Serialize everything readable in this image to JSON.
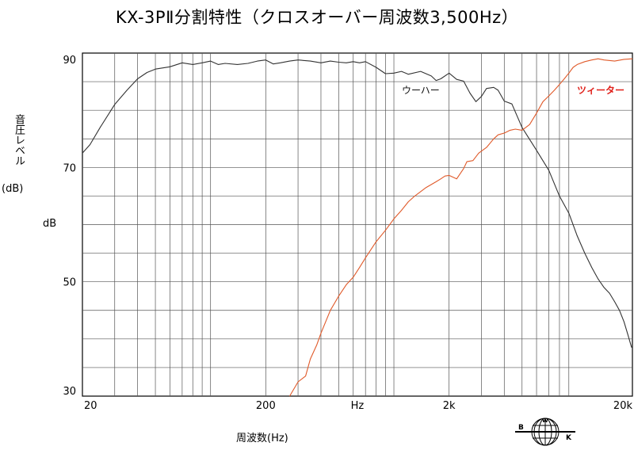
{
  "chart_data": {
    "type": "line",
    "title": "KX-3PⅡ分割特性（クロスオーバー周波数3,500Hz）",
    "ylabel": "音圧レベル",
    "ylabel_unit": "(dB)",
    "ylabel_axis": "dB",
    "xlabel": "周波数(Hz)",
    "x_scale": "log",
    "xlim": [
      20,
      20000
    ],
    "ylim": [
      30,
      90
    ],
    "x_tick_labels": [
      {
        "value": 20,
        "label": "20"
      },
      {
        "value": 200,
        "label": "200"
      },
      {
        "value": 632,
        "label": "Hz"
      },
      {
        "value": 2000,
        "label": "2k"
      },
      {
        "value": 20000,
        "label": "20k"
      }
    ],
    "y_tick_labels": [
      {
        "value": 90,
        "label": "90"
      },
      {
        "value": 70,
        "label": "70"
      },
      {
        "value": 50,
        "label": "50"
      },
      {
        "value": 30,
        "label": "30"
      }
    ],
    "grid": true,
    "series": [
      {
        "name": "ウーハー",
        "color": "#333333",
        "points": [
          [
            20,
            72.5
          ],
          [
            22,
            74
          ],
          [
            25,
            77
          ],
          [
            30,
            81
          ],
          [
            35,
            83.5
          ],
          [
            40,
            85.5
          ],
          [
            45,
            86.6
          ],
          [
            50,
            87.2
          ],
          [
            60,
            87.6
          ],
          [
            70,
            88.3
          ],
          [
            80,
            88
          ],
          [
            90,
            88.3
          ],
          [
            100,
            88.6
          ],
          [
            110,
            88
          ],
          [
            120,
            88.2
          ],
          [
            140,
            88
          ],
          [
            160,
            88.2
          ],
          [
            180,
            88.6
          ],
          [
            200,
            88.8
          ],
          [
            220,
            88.1
          ],
          [
            240,
            88.3
          ],
          [
            270,
            88.6
          ],
          [
            300,
            88.8
          ],
          [
            350,
            88.6
          ],
          [
            400,
            88.3
          ],
          [
            450,
            88.6
          ],
          [
            500,
            88.4
          ],
          [
            550,
            88.3
          ],
          [
            600,
            88.5
          ],
          [
            650,
            88.3
          ],
          [
            700,
            88.5
          ],
          [
            800,
            87.5
          ],
          [
            900,
            86.4
          ],
          [
            1000,
            86.5
          ],
          [
            1100,
            86.8
          ],
          [
            1200,
            86.3
          ],
          [
            1400,
            86.8
          ],
          [
            1600,
            86
          ],
          [
            1700,
            85.2
          ],
          [
            1800,
            85.5
          ],
          [
            2000,
            86.5
          ],
          [
            2200,
            85.4
          ],
          [
            2400,
            85.1
          ],
          [
            2600,
            83
          ],
          [
            2800,
            81.5
          ],
          [
            3000,
            82.4
          ],
          [
            3200,
            83.8
          ],
          [
            3500,
            84
          ],
          [
            3700,
            83.5
          ],
          [
            4000,
            81.6
          ],
          [
            4400,
            81.1
          ],
          [
            5000,
            77
          ],
          [
            6000,
            73
          ],
          [
            7000,
            69.5
          ],
          [
            8000,
            65
          ],
          [
            9000,
            62
          ],
          [
            10000,
            58
          ],
          [
            11000,
            55
          ],
          [
            12000,
            52.5
          ],
          [
            13000,
            50.5
          ],
          [
            14000,
            49
          ],
          [
            15000,
            48
          ],
          [
            16000,
            46.5
          ],
          [
            17000,
            45
          ],
          [
            18000,
            43
          ],
          [
            19000,
            40.5
          ],
          [
            19800,
            38.5
          ]
        ]
      },
      {
        "name": "ツィーター",
        "color": "#e05a2a",
        "points": [
          [
            270,
            30
          ],
          [
            300,
            32.5
          ],
          [
            330,
            33.5
          ],
          [
            350,
            36.5
          ],
          [
            380,
            39
          ],
          [
            400,
            41
          ],
          [
            450,
            45
          ],
          [
            500,
            47.5
          ],
          [
            550,
            49.5
          ],
          [
            600,
            50.8
          ],
          [
            650,
            52.5
          ],
          [
            700,
            54.2
          ],
          [
            800,
            57
          ],
          [
            900,
            59
          ],
          [
            1000,
            61
          ],
          [
            1100,
            62.5
          ],
          [
            1200,
            64
          ],
          [
            1300,
            65
          ],
          [
            1500,
            66.5
          ],
          [
            1700,
            67.5
          ],
          [
            1800,
            68
          ],
          [
            1900,
            68.5
          ],
          [
            2000,
            68.6
          ],
          [
            2200,
            68
          ],
          [
            2400,
            69.8
          ],
          [
            2500,
            71
          ],
          [
            2700,
            71.2
          ],
          [
            2900,
            72.5
          ],
          [
            3200,
            73.5
          ],
          [
            3500,
            75
          ],
          [
            3700,
            75.7
          ],
          [
            4000,
            76
          ],
          [
            4300,
            76.5
          ],
          [
            4600,
            76.7
          ],
          [
            5000,
            76.5
          ],
          [
            5500,
            77.5
          ],
          [
            6000,
            79.5
          ],
          [
            6500,
            81.5
          ],
          [
            7000,
            82.5
          ],
          [
            7500,
            83.5
          ],
          [
            8000,
            84.5
          ],
          [
            8500,
            85.5
          ],
          [
            9000,
            86.5
          ],
          [
            9500,
            87.5
          ],
          [
            10000,
            88
          ],
          [
            11000,
            88.5
          ],
          [
            12000,
            88.8
          ],
          [
            13000,
            89
          ],
          [
            14000,
            88.8
          ],
          [
            16000,
            88.6
          ],
          [
            18000,
            88.9
          ],
          [
            20000,
            89
          ]
        ]
      }
    ],
    "annotations": [
      {
        "text": "ウーハー",
        "series": "ウーハー"
      },
      {
        "text": "ツィーター",
        "series": "ツィーター"
      }
    ]
  },
  "logo": {
    "letters": [
      "B",
      "W",
      "K"
    ]
  }
}
